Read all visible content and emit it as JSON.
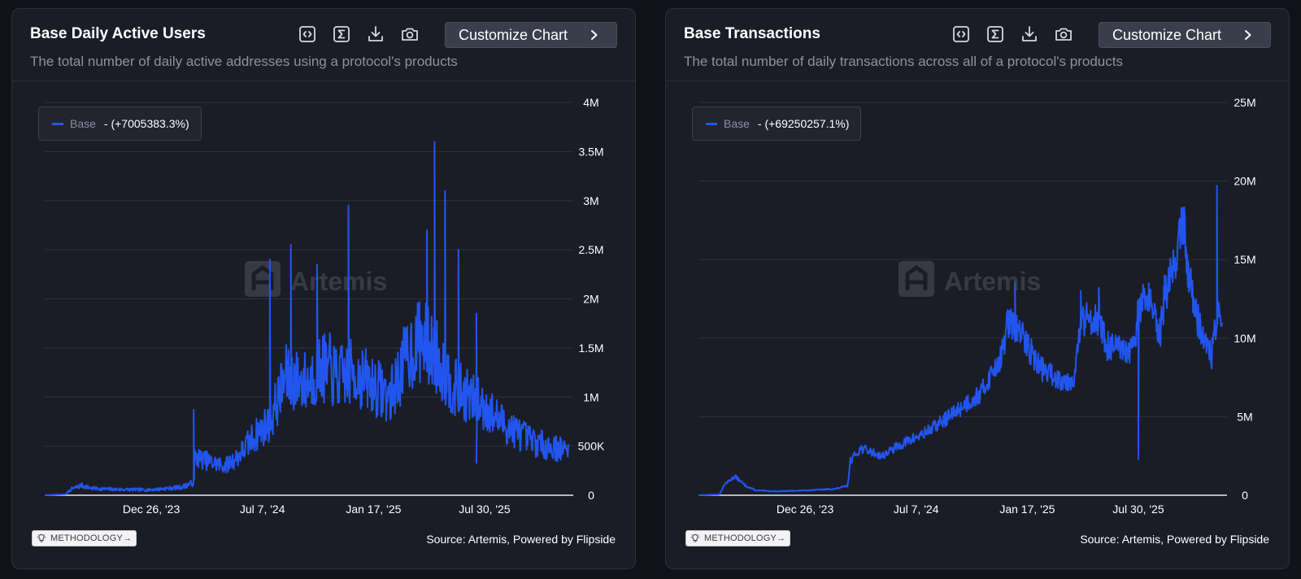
{
  "cards": [
    {
      "title": "Base Daily Active Users",
      "subtitle": "The total number of daily active addresses using a protocol's products",
      "customize_label": "Customize Chart",
      "legend_name": "Base",
      "legend_change": "- (+7005383.3%)",
      "watermark": "Artemis",
      "methodology_label": "METHODOLOGY→",
      "source": "Source: Artemis, Powered by Flipside"
    },
    {
      "title": "Base Transactions",
      "subtitle": "The total number of daily transactions across all of a protocol's products",
      "customize_label": "Customize Chart",
      "legend_name": "Base",
      "legend_change": "- (+69250257.1%)",
      "watermark": "Artemis",
      "methodology_label": "METHODOLOGY→",
      "source": "Source: Artemis, Powered by Flipside"
    }
  ],
  "chart_data": [
    {
      "type": "line",
      "title": "Base Daily Active Users",
      "series": [
        {
          "name": "Base",
          "color": "#2155ee"
        }
      ],
      "x_range": [
        "2023-06-15",
        "2025-12-31"
      ],
      "x_ticks": [
        "Dec 26, '23",
        "Jul 7, '24",
        "Jan 17, '25",
        "Jul 30, '25"
      ],
      "x_tick_positions": [
        0.2035,
        0.4157,
        0.6279,
        0.84
      ],
      "y_range": [
        0,
        4000000
      ],
      "y_ticks": [
        0,
        500000,
        1000000,
        1500000,
        2000000,
        2500000,
        3000000,
        3500000,
        4000000
      ],
      "y_tick_labels": [
        "0",
        "500K",
        "1M",
        "1.5M",
        "2M",
        "2.5M",
        "3M",
        "3.5M",
        "4M"
      ],
      "anchors": [
        [
          0.0,
          0
        ],
        [
          0.04,
          10000
        ],
        [
          0.05,
          60000
        ],
        [
          0.07,
          100000
        ],
        [
          0.09,
          70000
        ],
        [
          0.13,
          60000
        ],
        [
          0.2,
          55000
        ],
        [
          0.26,
          80000
        ],
        [
          0.285,
          130000
        ],
        [
          0.286,
          390000
        ],
        [
          0.3,
          370000
        ],
        [
          0.32,
          330000
        ],
        [
          0.345,
          300000
        ],
        [
          0.37,
          400000
        ],
        [
          0.4,
          600000
        ],
        [
          0.43,
          750000
        ],
        [
          0.46,
          1200000
        ],
        [
          0.5,
          1150000
        ],
        [
          0.53,
          1300000
        ],
        [
          0.56,
          1200000
        ],
        [
          0.59,
          1250000
        ],
        [
          0.62,
          1150000
        ],
        [
          0.66,
          1000000
        ],
        [
          0.69,
          1400000
        ],
        [
          0.72,
          1600000
        ],
        [
          0.75,
          1400000
        ],
        [
          0.78,
          1100000
        ],
        [
          0.81,
          1000000
        ],
        [
          0.84,
          900000
        ],
        [
          0.87,
          750000
        ],
        [
          0.9,
          650000
        ],
        [
          0.93,
          550000
        ],
        [
          0.96,
          500000
        ],
        [
          1.0,
          450000
        ]
      ],
      "spikes": [
        [
          0.285,
          870000
        ],
        [
          0.43,
          2400000
        ],
        [
          0.47,
          2550000
        ],
        [
          0.52,
          2350000
        ],
        [
          0.58,
          2950000
        ],
        [
          0.545,
          1650000
        ],
        [
          0.73,
          2700000
        ],
        [
          0.745,
          3600000
        ],
        [
          0.765,
          3100000
        ],
        [
          0.79,
          2500000
        ],
        [
          0.825,
          1850000
        ],
        [
          0.825,
          330000
        ]
      ],
      "noise": 0.28,
      "seed": 7
    },
    {
      "type": "line",
      "title": "Base Transactions",
      "series": [
        {
          "name": "Base",
          "color": "#2155ee"
        }
      ],
      "x_range": [
        "2023-06-15",
        "2025-12-31"
      ],
      "x_ticks": [
        "Dec 26, '23",
        "Jul 7, '24",
        "Jan 17, '25",
        "Jul 30, '25"
      ],
      "x_tick_positions": [
        0.2035,
        0.4157,
        0.6279,
        0.84
      ],
      "y_range": [
        0,
        25000000
      ],
      "y_ticks": [
        0,
        5000000,
        10000000,
        15000000,
        20000000,
        25000000
      ],
      "y_tick_labels": [
        "0",
        "5M",
        "10M",
        "15M",
        "20M",
        "25M"
      ],
      "anchors": [
        [
          0.0,
          0
        ],
        [
          0.04,
          50000
        ],
        [
          0.05,
          700000
        ],
        [
          0.07,
          1200000
        ],
        [
          0.09,
          600000
        ],
        [
          0.11,
          300000
        ],
        [
          0.15,
          250000
        ],
        [
          0.2,
          300000
        ],
        [
          0.26,
          400000
        ],
        [
          0.285,
          600000
        ],
        [
          0.29,
          2200000
        ],
        [
          0.31,
          3000000
        ],
        [
          0.35,
          2500000
        ],
        [
          0.39,
          3300000
        ],
        [
          0.43,
          3900000
        ],
        [
          0.47,
          4800000
        ],
        [
          0.51,
          5800000
        ],
        [
          0.54,
          6500000
        ],
        [
          0.56,
          7800000
        ],
        [
          0.58,
          9000000
        ],
        [
          0.59,
          11000000
        ],
        [
          0.61,
          10500000
        ],
        [
          0.63,
          9500000
        ],
        [
          0.65,
          8200000
        ],
        [
          0.68,
          7500000
        ],
        [
          0.71,
          7300000
        ],
        [
          0.72,
          7800000
        ],
        [
          0.73,
          11000000
        ],
        [
          0.76,
          11500000
        ],
        [
          0.78,
          9500000
        ],
        [
          0.8,
          9300000
        ],
        [
          0.82,
          9000000
        ],
        [
          0.835,
          9500000
        ],
        [
          0.84,
          12000000
        ],
        [
          0.86,
          12500000
        ],
        [
          0.88,
          10000000
        ],
        [
          0.89,
          12500000
        ],
        [
          0.91,
          15000000
        ],
        [
          0.925,
          17500000
        ],
        [
          0.935,
          14500000
        ],
        [
          0.95,
          11500000
        ],
        [
          0.965,
          10000000
        ],
        [
          0.98,
          8800000
        ],
        [
          0.99,
          11500000
        ],
        [
          1.0,
          10500000
        ]
      ],
      "spikes": [
        [
          0.59,
          11800000
        ],
        [
          0.605,
          13500000
        ],
        [
          0.73,
          13000000
        ],
        [
          0.765,
          13200000
        ],
        [
          0.84,
          2300000
        ],
        [
          0.86,
          13500000
        ],
        [
          0.89,
          14000000
        ],
        [
          0.926,
          18300000
        ],
        [
          0.99,
          19700000
        ]
      ],
      "noise": 0.1,
      "seed": 13
    }
  ]
}
